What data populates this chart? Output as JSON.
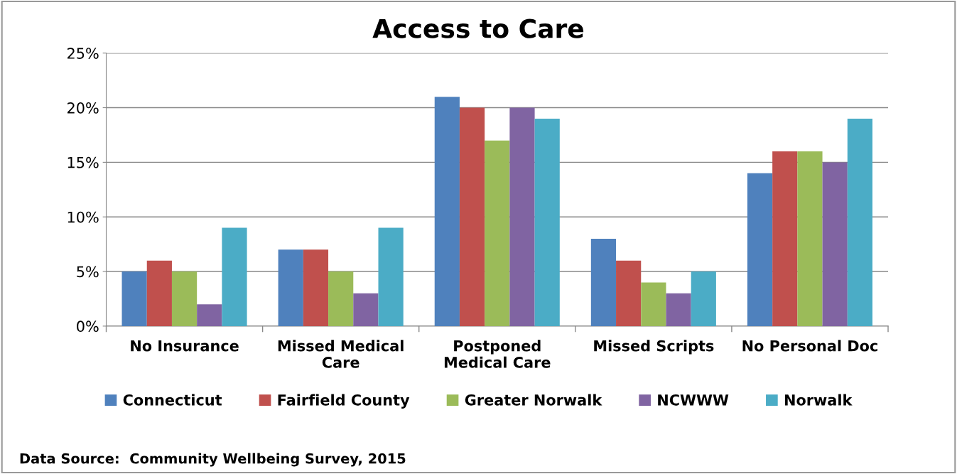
{
  "chart_data": {
    "type": "bar",
    "title": "Access to Care",
    "categories": [
      "No Insurance",
      "Missed Medical\nCare",
      "Postponed\nMedical Care",
      "Missed Scripts",
      "No Personal Doc"
    ],
    "series": [
      {
        "name": "Connecticut",
        "color": "#4f81bd",
        "values": [
          5,
          7,
          21,
          8,
          14
        ]
      },
      {
        "name": "Fairfield County",
        "color": "#c0504d",
        "values": [
          6,
          7,
          20,
          6,
          16
        ]
      },
      {
        "name": "Greater Norwalk",
        "color": "#9bbb59",
        "values": [
          5,
          5,
          17,
          4,
          16
        ]
      },
      {
        "name": "NCWWW",
        "color": "#8064a2",
        "values": [
          2,
          3,
          20,
          3,
          15
        ]
      },
      {
        "name": "Norwalk",
        "color": "#4bacc6",
        "values": [
          9,
          9,
          19,
          5,
          19
        ]
      }
    ],
    "ylim": [
      0,
      25
    ],
    "yticks": [
      {
        "value": 0,
        "label": "0%"
      },
      {
        "value": 5,
        "label": "5%"
      },
      {
        "value": 10,
        "label": "10%"
      },
      {
        "value": 15,
        "label": "15%"
      },
      {
        "value": 20,
        "label": "20%"
      },
      {
        "value": 25,
        "label": "25%"
      }
    ],
    "grid": "y",
    "legend": "bottom",
    "annotations": [
      "Data Source:  Community Wellbeing Survey, 2015"
    ]
  }
}
